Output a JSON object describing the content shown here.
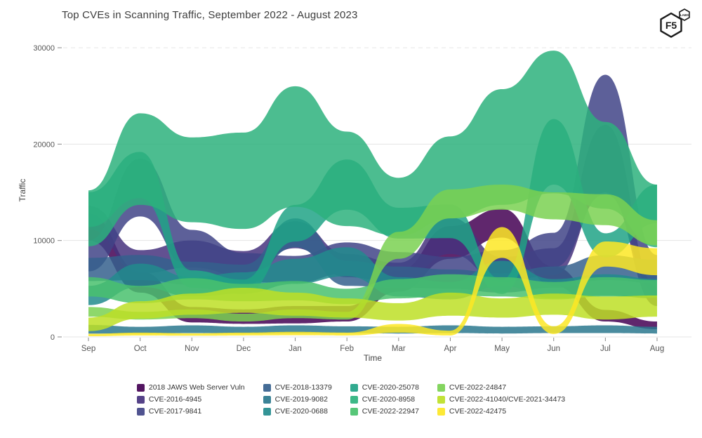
{
  "title": "Top CVEs in Scanning Traffic, September 2022 - August 2023",
  "logo": {
    "main": "F5",
    "sub": "LABS"
  },
  "axes": {
    "x_label": "Time",
    "y_label": "Traffic",
    "grid_color": "#e4e4e4",
    "tick_color": "#8a8a8a",
    "label_color": "#555555"
  },
  "chart_data": {
    "type": "area",
    "variant": "streamgraph (overlapping translucent bands, bump interpolation)",
    "title": "Top CVEs in Scanning Traffic, September 2022 - August 2023",
    "xlabel": "Time",
    "ylabel": "Traffic",
    "x": [
      "Sep",
      "Oct",
      "Nov",
      "Dec",
      "Jan",
      "Feb",
      "Mar",
      "Apr",
      "May",
      "Jun",
      "Jul",
      "Aug"
    ],
    "y_ticks": [
      0,
      10000,
      20000,
      30000
    ],
    "ylim": [
      0,
      30000
    ],
    "grid": true,
    "legend_position": "bottom",
    "band_opacity": 0.85,
    "series": [
      {
        "name": "2018 JAWS Web Server Vuln",
        "color": "#440154",
        "centers": [
          11400,
          5700,
          2300,
          2100,
          2300,
          2400,
          5800,
          9800,
          11800,
          6300,
          2200,
          1200
        ],
        "values": [
          2800,
          2200,
          1600,
          1500,
          1800,
          1600,
          2200,
          3400,
          3000,
          2000,
          1200,
          800
        ]
      },
      {
        "name": "CVE-2016-4945",
        "color": "#46327e",
        "centers": [
          12400,
          7800,
          8600,
          7600,
          10600,
          7400,
          6600,
          10500,
          7000,
          7800,
          18500,
          4200
        ],
        "values": [
          2400,
          2400,
          2800,
          2600,
          2800,
          2400,
          2200,
          3800,
          2600,
          2800,
          7000,
          2000
        ]
      },
      {
        "name": "CVE-2017-9841",
        "color": "#414487",
        "centers": [
          8400,
          15500,
          9000,
          7200,
          7000,
          8200,
          7400,
          7000,
          7600,
          9000,
          21000,
          6500
        ],
        "values": [
          3200,
          6000,
          4200,
          3000,
          2800,
          3200,
          2800,
          2600,
          2800,
          3600,
          12400,
          4000
        ]
      },
      {
        "name": "CVE-2018-13379",
        "color": "#35608d",
        "centers": [
          7000,
          7200,
          6600,
          6400,
          10800,
          6600,
          6200,
          6000,
          5600,
          6200,
          7200,
          6800
        ],
        "values": [
          2400,
          2600,
          2400,
          2200,
          3000,
          2600,
          2200,
          2000,
          2000,
          2200,
          2600,
          2400
        ]
      },
      {
        "name": "CVE-2019-9082",
        "color": "#2a788e",
        "centers": [
          800,
          700,
          800,
          700,
          800,
          750,
          700,
          800,
          700,
          750,
          800,
          700
        ],
        "values": [
          900,
          700,
          800,
          700,
          800,
          700,
          700,
          800,
          700,
          700,
          800,
          700
        ]
      },
      {
        "name": "CVE-2020-0688",
        "color": "#228b8d",
        "centers": [
          4300,
          6400,
          5200,
          5600,
          6800,
          7800,
          5200,
          4800,
          6600,
          5000,
          5400,
          5000
        ],
        "values": [
          2000,
          2400,
          2000,
          2200,
          2600,
          3000,
          2000,
          1800,
          2600,
          2000,
          2200,
          2000
        ]
      },
      {
        "name": "CVE-2020-25078",
        "color": "#20a386",
        "centers": [
          13200,
          16800,
          6000,
          5200,
          11800,
          15800,
          11800,
          12000,
          5200,
          19200,
          9500,
          13800
        ],
        "values": [
          3600,
          4800,
          1800,
          1500,
          3800,
          5200,
          3200,
          3500,
          1500,
          6800,
          2500,
          4000
        ]
      },
      {
        "name": "CVE-2020-8958",
        "color": "#2db27d",
        "centers": [
          12300,
          18450,
          16300,
          16200,
          19750,
          16400,
          13500,
          16550,
          19700,
          22300,
          17800,
          12550
        ],
        "values": [
          5800,
          9500,
          8800,
          10000,
          12500,
          9800,
          6000,
          8500,
          12000,
          14800,
          9000,
          6500
        ]
      },
      {
        "name": "CVE-2022-22947",
        "color": "#49c16d",
        "centers": [
          5200,
          4400,
          5000,
          4600,
          4800,
          4200,
          5000,
          5400,
          5200,
          4800,
          5200,
          5000
        ],
        "values": [
          2000,
          1800,
          2200,
          1800,
          2000,
          1600,
          2000,
          2200,
          2000,
          1800,
          2000,
          1800
        ]
      },
      {
        "name": "CVE-2022-24847",
        "color": "#7ad151",
        "centers": [
          2600,
          2200,
          2400,
          2000,
          2400,
          2200,
          9500,
          13800,
          14500,
          13600,
          13200,
          10800
        ],
        "values": [
          1000,
          800,
          900,
          800,
          900,
          800,
          2800,
          3000,
          2600,
          2800,
          3200,
          2600
        ]
      },
      {
        "name": "CVE-2022-41040/CVE-2021-34473",
        "color": "#bddf26",
        "centers": [
          1300,
          2800,
          3400,
          3800,
          3400,
          3000,
          2600,
          3400,
          3000,
          3400,
          3000,
          3200
        ],
        "values": [
          1400,
          1800,
          2200,
          2600,
          2400,
          2000,
          1800,
          2400,
          2000,
          2200,
          2400,
          2200
        ]
      },
      {
        "name": "CVE-2022-42475",
        "color": "#fde725",
        "centers": [
          200,
          300,
          250,
          300,
          350,
          300,
          900,
          400,
          9800,
          700,
          8600,
          7800
        ],
        "values": [
          250,
          300,
          250,
          300,
          350,
          300,
          900,
          500,
          3200,
          800,
          2600,
          2800
        ]
      }
    ]
  }
}
